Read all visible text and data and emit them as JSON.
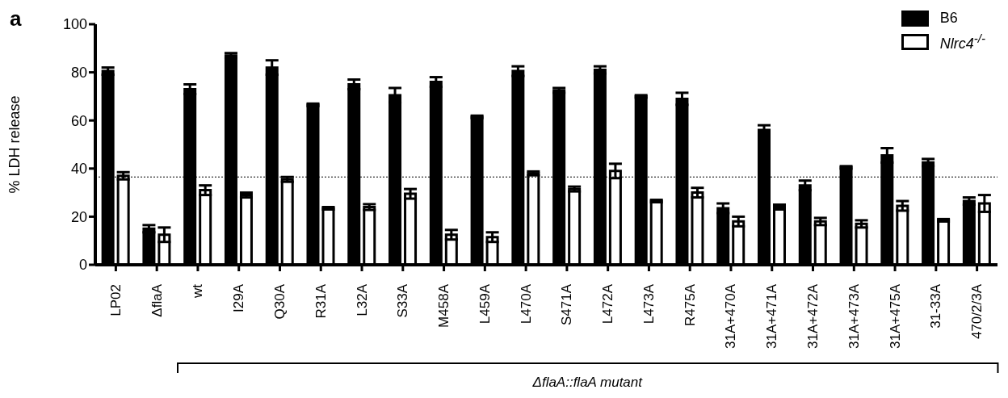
{
  "chart_data": {
    "type": "bar",
    "ylabel": "% LDH release",
    "categories": [
      "LP02",
      "ΔflaA",
      "wt",
      "I29A",
      "Q30A",
      "R31A",
      "L32A",
      "S33A",
      "M458A",
      "L459A",
      "L470A",
      "S471A",
      "L472A",
      "L473A",
      "R475A",
      "31A+470A",
      "31A+471A",
      "31A+472A",
      "31A+473A",
      "31A+475A",
      "31-33A",
      "470/2/3A"
    ],
    "series": [
      {
        "name": "B6",
        "color": "#000000",
        "values": [
          80.5,
          15,
          73,
          87,
          82,
          66.5,
          75,
          70.5,
          76,
          61.5,
          80.5,
          72.5,
          81,
          70,
          69,
          23.5,
          56,
          33,
          40.5,
          45.5,
          42.5,
          26.5
        ],
        "errors": [
          1.5,
          1.5,
          2,
          1,
          3,
          0.5,
          2,
          3,
          2,
          0.5,
          2,
          1,
          1.5,
          0.5,
          2.5,
          2,
          2,
          2,
          0.5,
          3,
          1.5,
          1.5
        ]
      },
      {
        "name": "Nlrc4$^{-/-}$",
        "color": "#ffffff",
        "values": [
          37,
          12.5,
          31,
          29,
          35.5,
          23.5,
          24,
          29.5,
          12.5,
          11.5,
          38,
          31.5,
          39,
          26.5,
          30,
          18,
          24,
          18,
          17,
          24.5,
          18.5,
          25.5
        ],
        "errors": [
          1.5,
          3,
          2,
          1,
          1,
          0.5,
          1.2,
          2,
          2,
          2,
          0.8,
          1,
          3,
          0.5,
          2,
          2,
          1,
          1.5,
          1.5,
          2,
          0.5,
          3.5
        ]
      }
    ],
    "ylim": [
      0,
      100
    ],
    "yticks": [
      0,
      20,
      40,
      60,
      80,
      100
    ],
    "grid": false,
    "legend": "top right",
    "ref_lines": [
      {
        "axis": "y",
        "value": 36.5,
        "line_style": "dotted",
        "color": "#000000"
      }
    ],
    "annotations": [
      "a",
      "ΔflaA::flaA mutant"
    ]
  }
}
